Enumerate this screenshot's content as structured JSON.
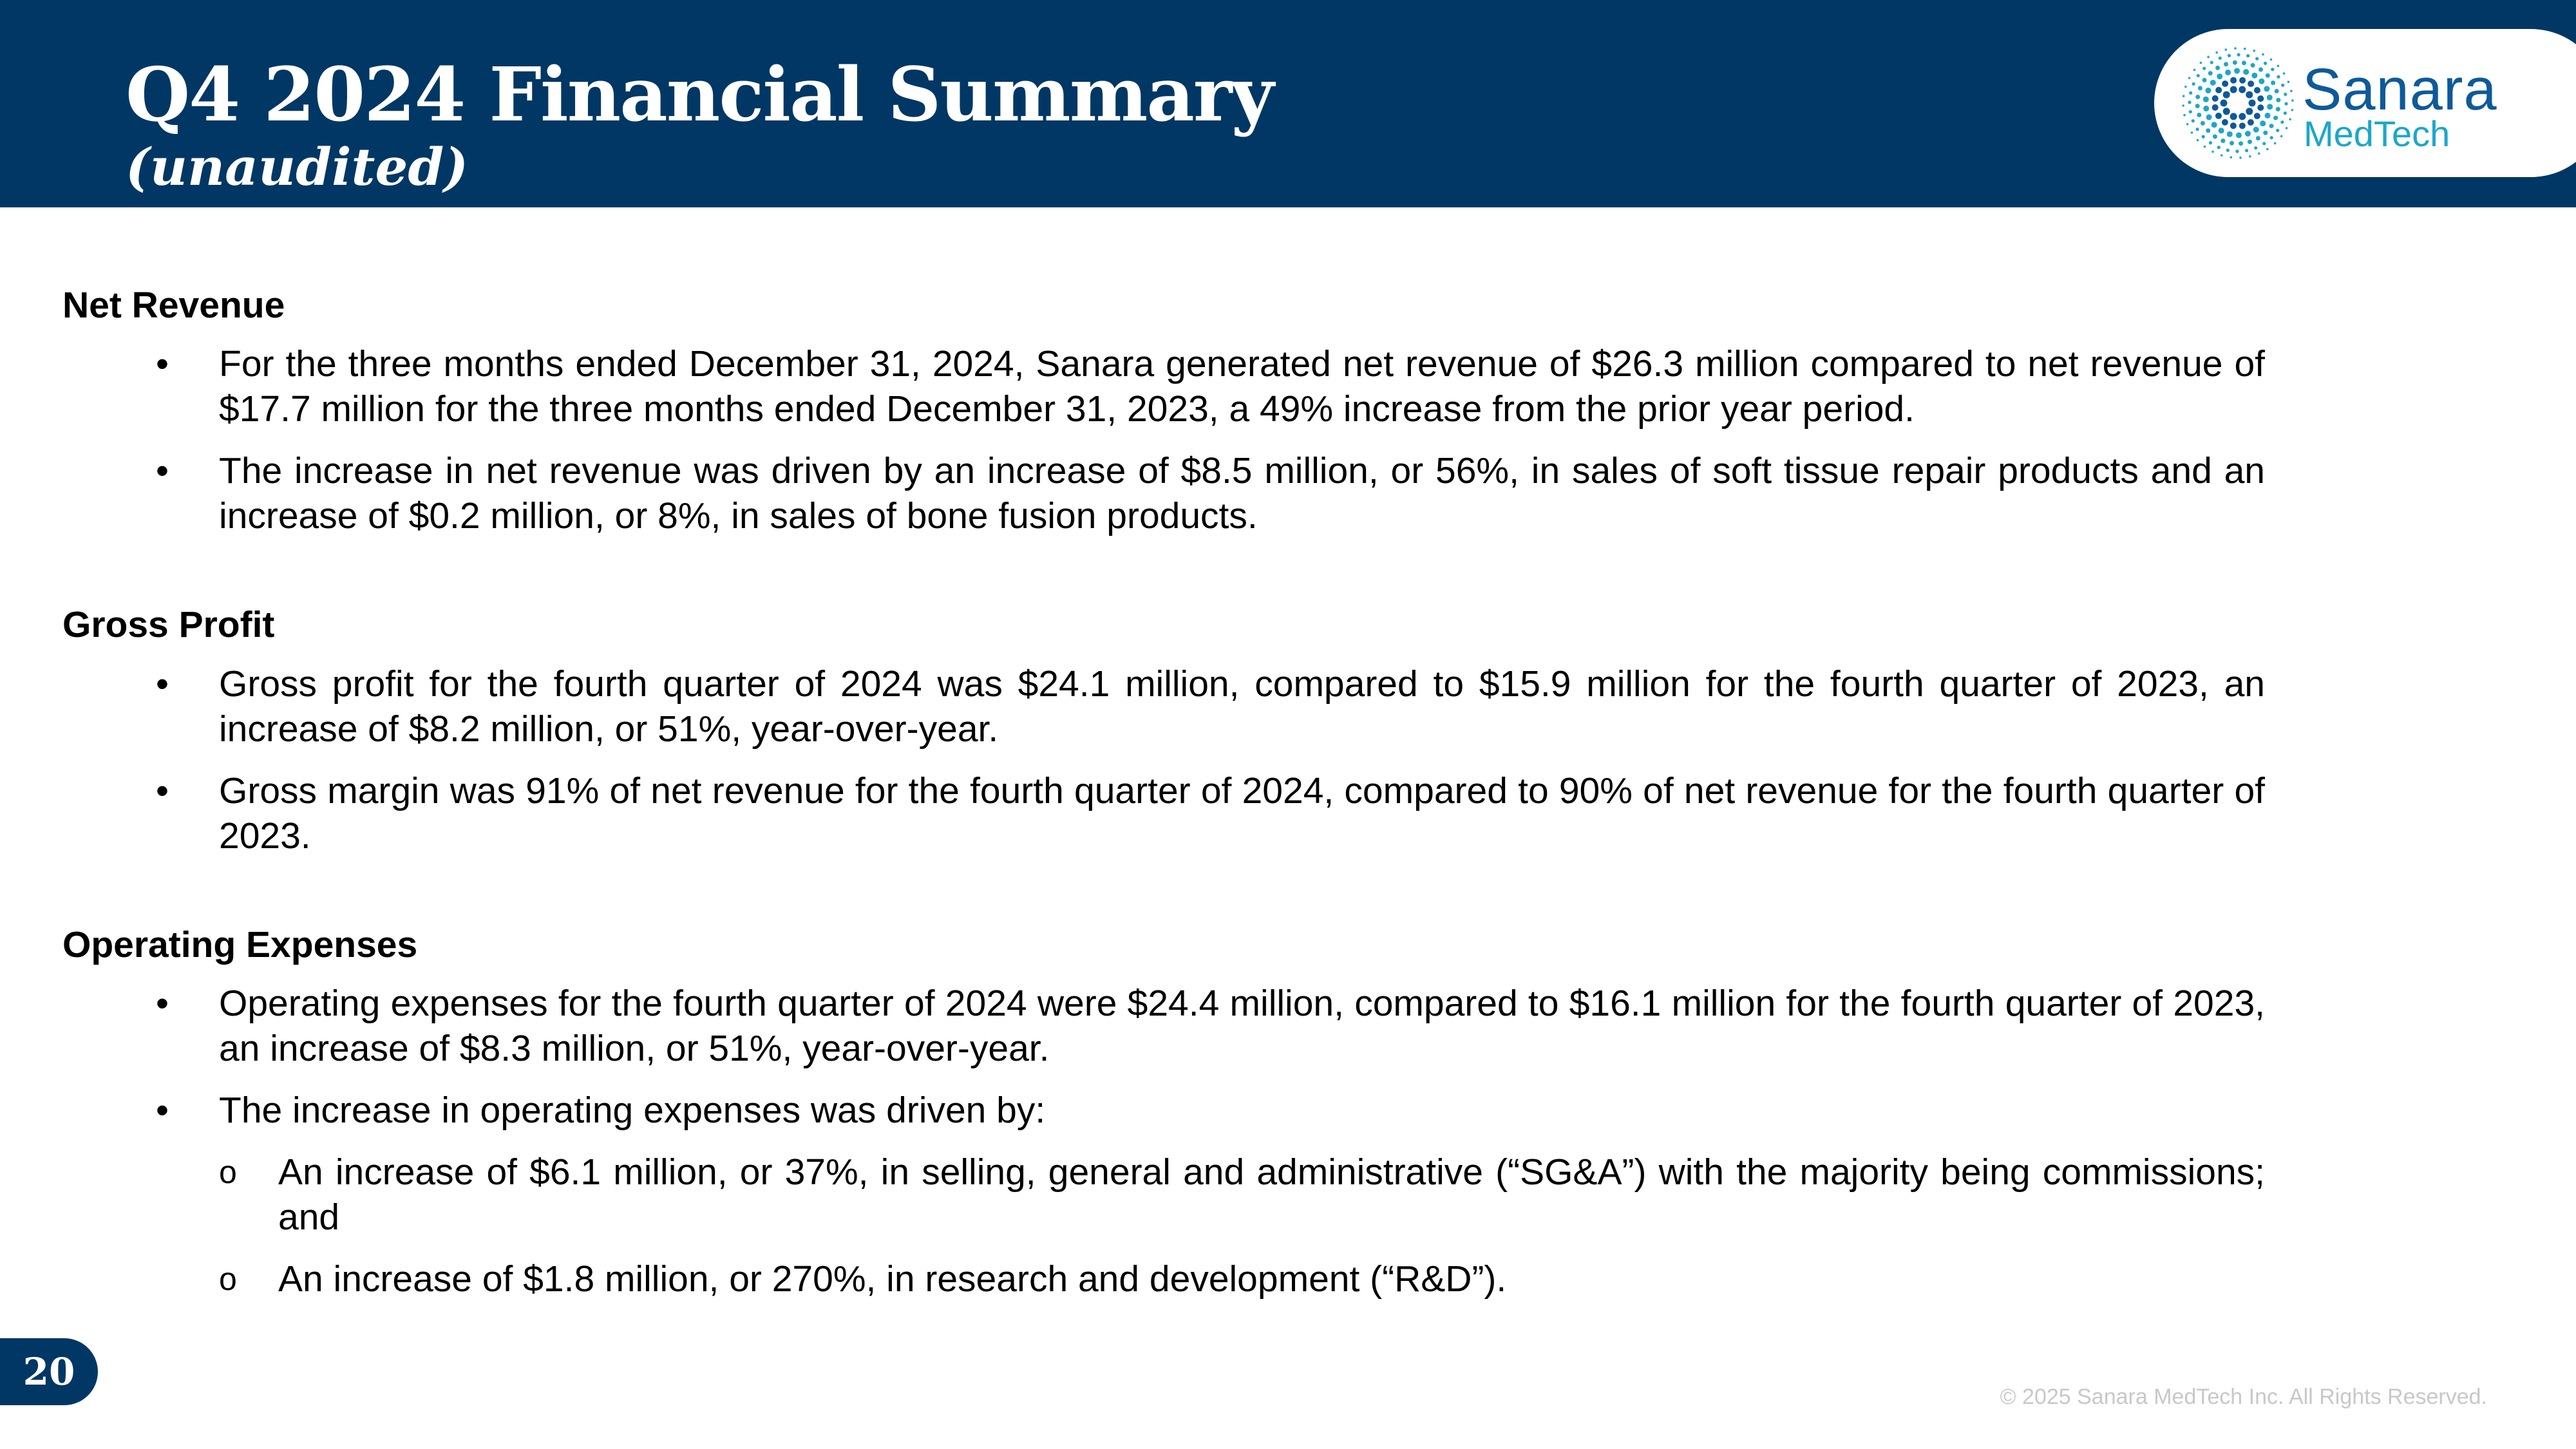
{
  "header": {
    "title": "Q4 2024 Financial Summary",
    "subtitle": "(unaudited)",
    "background_color": "#003764"
  },
  "logo": {
    "word1": "Sanara",
    "word2": "MedTech",
    "icon": "sunburst-dots-icon",
    "colors": {
      "primary": "#0e5a99",
      "accent": "#1ca7c9"
    }
  },
  "sections": [
    {
      "title": "Net Revenue",
      "bullets": [
        {
          "marker": "•",
          "text": "For the three months ended December 31, 2024, Sanara generated net revenue of $26.3 million compared to net revenue of $17.7 million for the three months ended December 31, 2023, a 49% increase from the prior year period."
        },
        {
          "marker": "•",
          "text": "The increase in net revenue was driven by an increase of $8.5 million, or 56%, in sales of soft tissue repair products and an increase of $0.2 million, or 8%, in sales of bone fusion products."
        }
      ]
    },
    {
      "title": "Gross Profit",
      "bullets": [
        {
          "marker": "•",
          "text": "Gross profit for the fourth quarter of 2024 was $24.1 million, compared to $15.9 million for the fourth quarter of 2023, an increase of $8.2 million, or 51%, year-over-year."
        },
        {
          "marker": "•",
          "text": "Gross margin was 91% of net revenue for the fourth quarter of 2024, compared to 90% of net revenue for the fourth quarter of 2023."
        }
      ]
    },
    {
      "title": "Operating Expenses",
      "bullets": [
        {
          "marker": "•",
          "text": "Operating expenses for the fourth quarter of 2024 were $24.4 million, compared to $16.1 million for the fourth quarter of 2023, an increase of $8.3 million, or 51%, year-over-year."
        },
        {
          "marker": "•",
          "text": "The increase in operating expenses was driven by:"
        }
      ],
      "sub_bullets": [
        {
          "marker": "o",
          "text": "An increase of $6.1 million, or 37%, in selling, general and administrative (“SG&A”) with the majority being commissions; and"
        },
        {
          "marker": "o",
          "text": "An increase of $1.8 million, or 270%, in research and development (“R&D”)."
        }
      ]
    }
  ],
  "page_number": "20",
  "footer": "© 2025 Sanara MedTech Inc. All Rights Reserved."
}
